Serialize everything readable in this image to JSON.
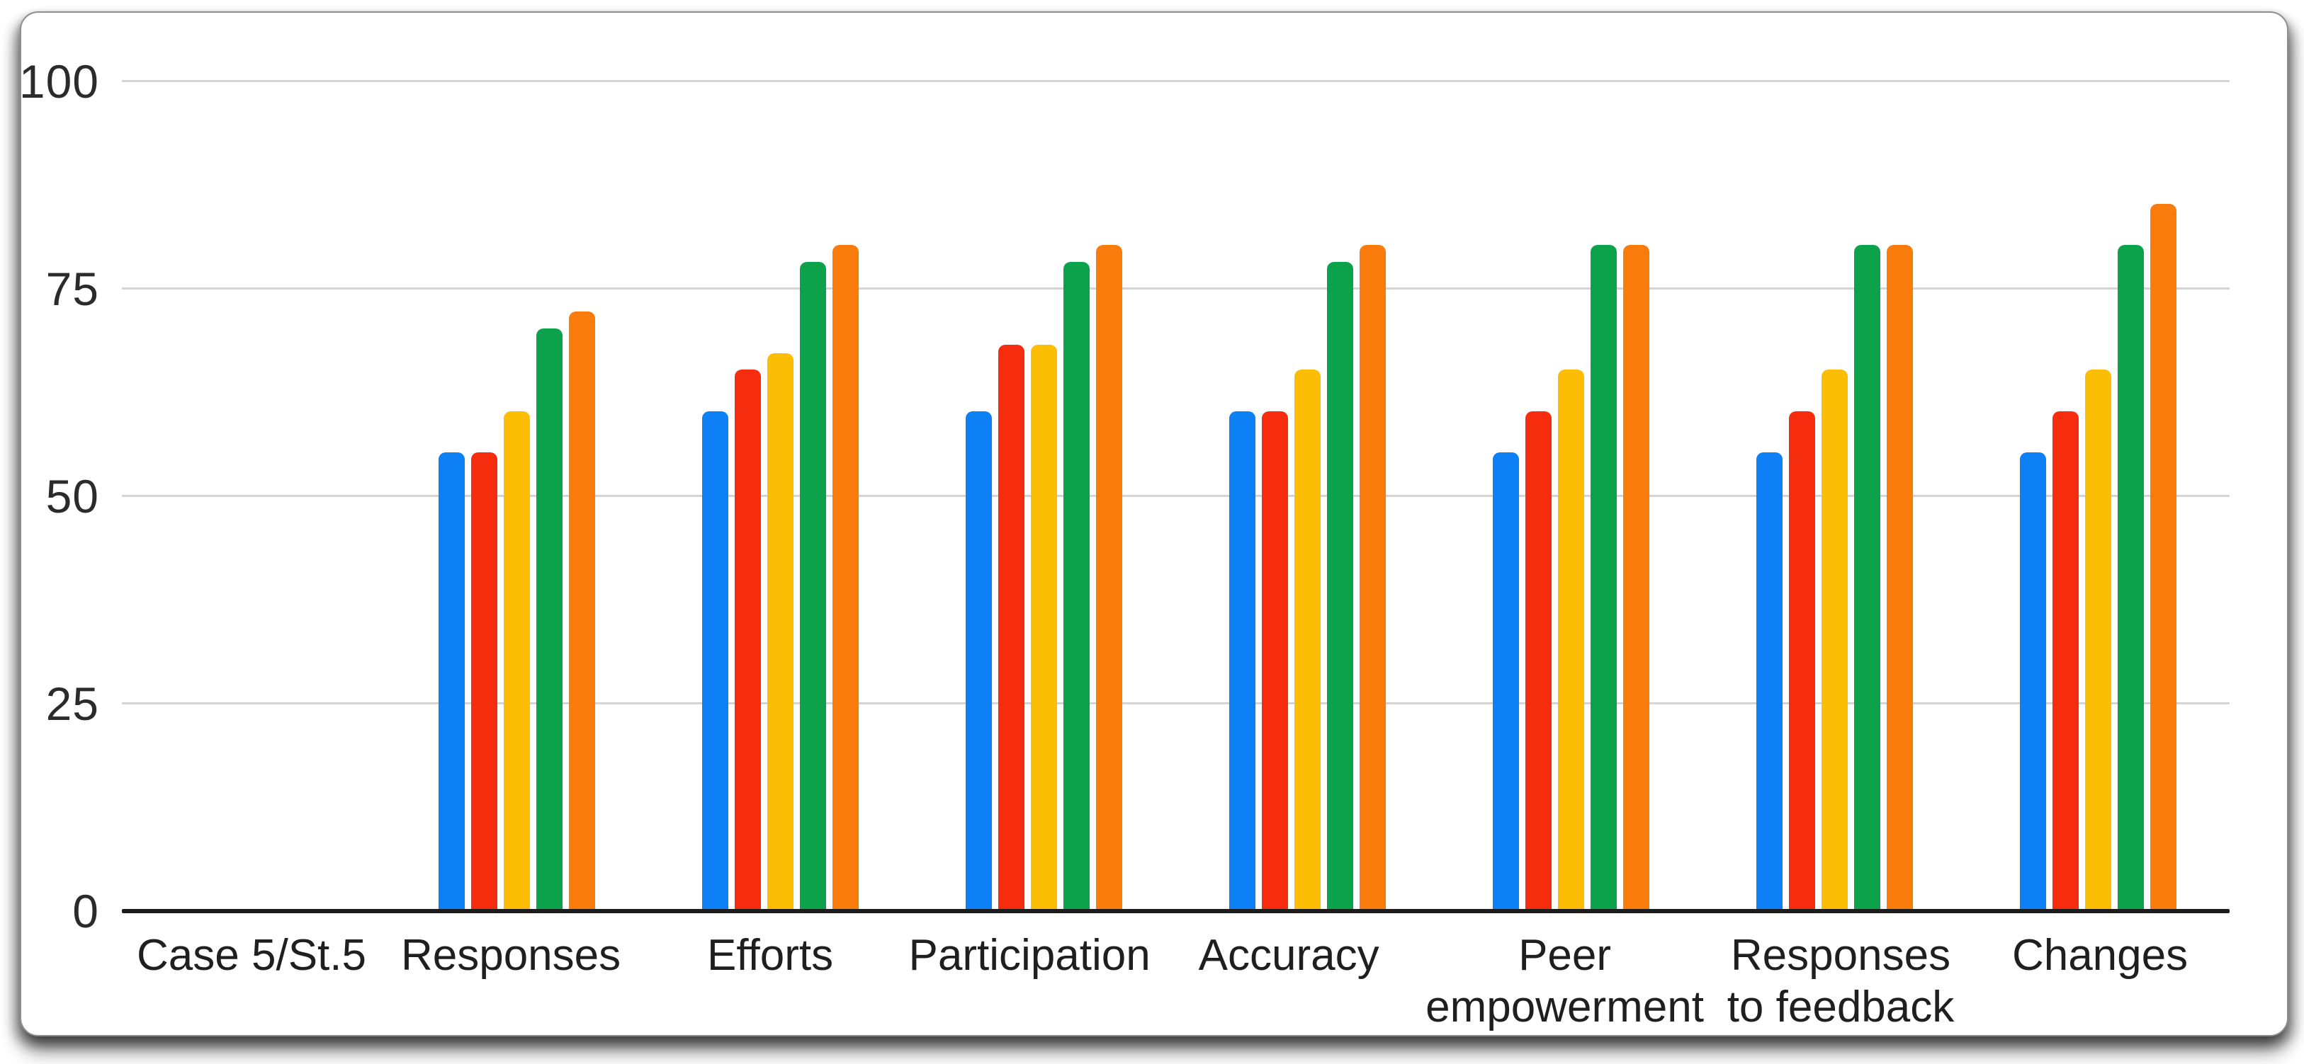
{
  "chart_data": {
    "type": "bar",
    "title": "",
    "xlabel": "",
    "ylabel": "",
    "ylim": [
      0,
      100
    ],
    "yticks": [
      0,
      25,
      50,
      75,
      100
    ],
    "grid": true,
    "legend_position": "none",
    "categories": [
      "Case 5/St.5",
      "Responses",
      "Efforts",
      "Participation",
      "Accuracy",
      "Peer empowerment",
      "Responses to feedback",
      "Changes"
    ],
    "series": [
      {
        "name": "blue-series",
        "color": "#0d80f5",
        "values": [
          0,
          55,
          60,
          60,
          60,
          55,
          55,
          55
        ]
      },
      {
        "name": "red-series",
        "color": "#f52c0e",
        "values": [
          0,
          55,
          65,
          68,
          60,
          60,
          60,
          60
        ]
      },
      {
        "name": "yellow-series",
        "color": "#fcbd05",
        "values": [
          0,
          60,
          67,
          68,
          65,
          65,
          65,
          65
        ]
      },
      {
        "name": "green-series",
        "color": "#0ca24c",
        "values": [
          0,
          70,
          78,
          78,
          78,
          80,
          80,
          80
        ]
      },
      {
        "name": "orange-series",
        "color": "#f87b0c",
        "values": [
          0,
          72,
          80,
          80,
          80,
          80,
          80,
          85
        ]
      }
    ],
    "colors": {
      "gridline": "#d4d4d4",
      "axis": "#1c1c1c",
      "tick_text": "#2b2b2b",
      "category_text": "#1f1f1f",
      "card_background": "#ffffff"
    }
  }
}
